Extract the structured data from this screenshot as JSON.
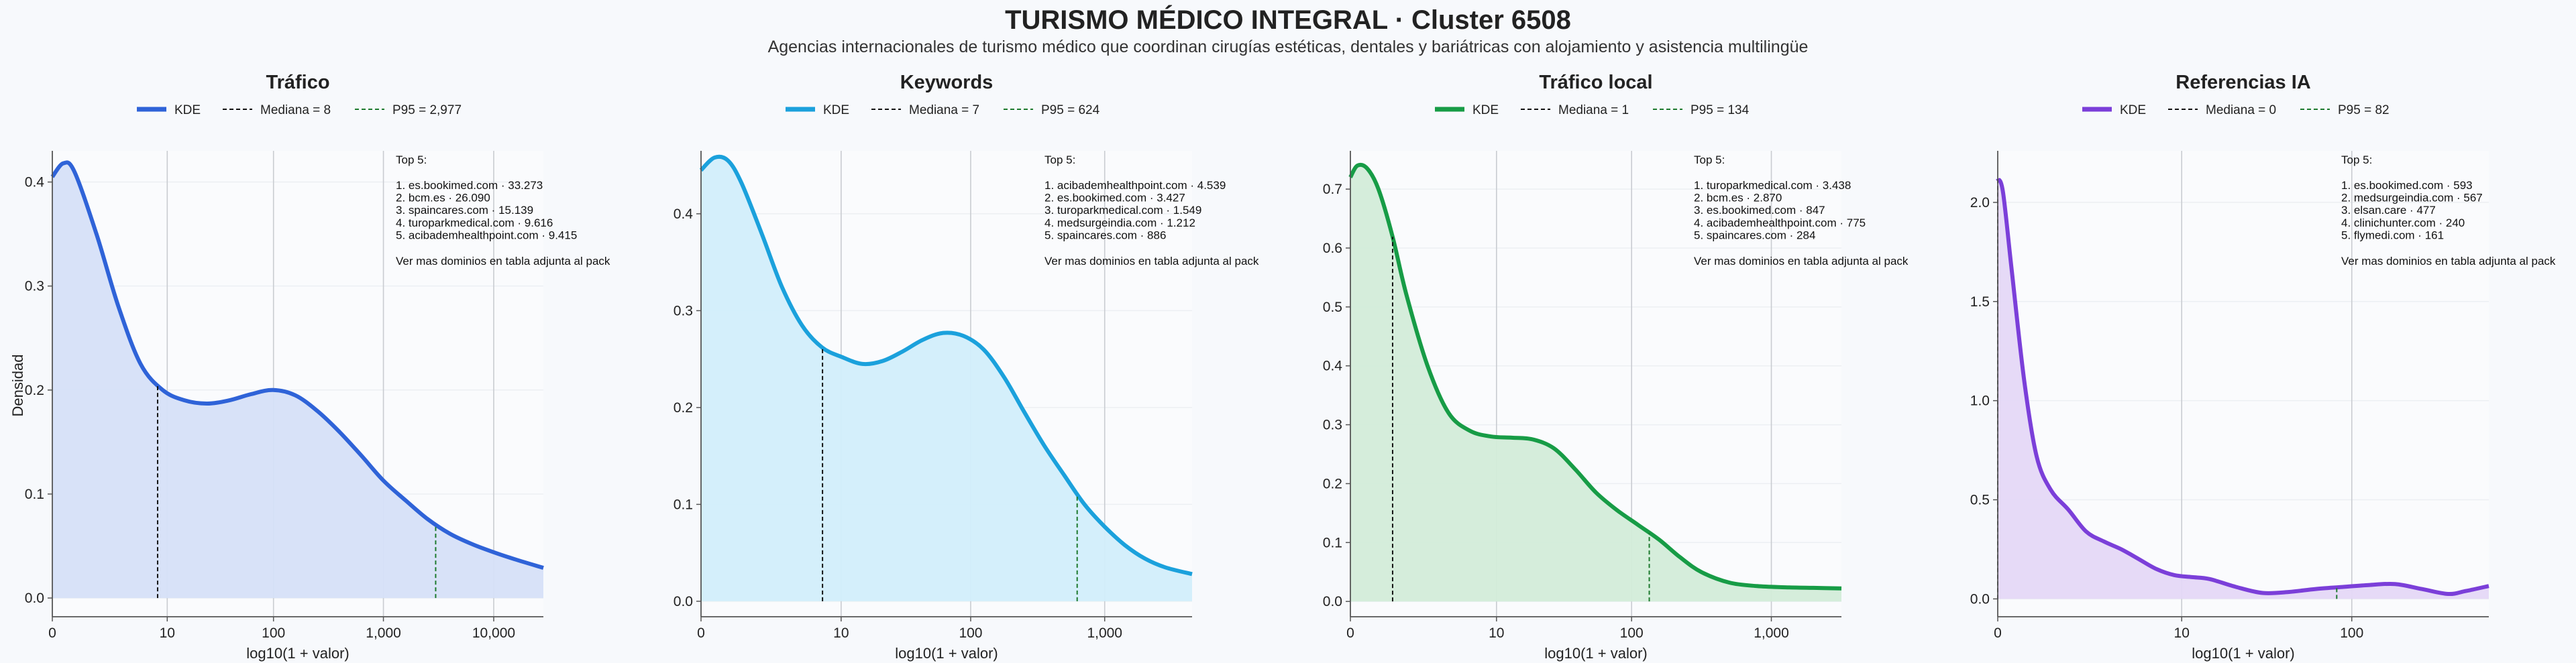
{
  "title": "TURISMO MÉDICO INTEGRAL · Cluster 6508",
  "subtitle": "Agencias internacionales de turismo médico que coordinan cirugías estéticas, dentales y bariátricas con alojamiento y asistencia multilingüe",
  "ylabel": "Densidad",
  "chart_data": [
    {
      "type": "area",
      "title": "Tráfico",
      "color": "#2f63d8",
      "fill": "#d6e0f8",
      "xlabel": "log10(1 + valor)",
      "xscale": "log10(1+x)",
      "xlim": [
        0,
        4.45
      ],
      "ylim": [
        -0.018,
        0.43
      ],
      "xticks": [
        0,
        10,
        100,
        1000,
        10000
      ],
      "xtick_labels": [
        "0",
        "10",
        "100",
        "1,000",
        "10,000"
      ],
      "yticks": [
        0.0,
        0.1,
        0.2,
        0.3,
        0.4
      ],
      "ytick_labels": [
        "0.0",
        "0.1",
        "0.2",
        "0.3",
        "0.4"
      ],
      "legend": {
        "kde": "KDE",
        "median": "Mediana = 8",
        "p95": "P95 = 2,977"
      },
      "median": 8,
      "p95": 2977,
      "kde": {
        "x": [
          0,
          0.1,
          0.2,
          0.4,
          0.6,
          0.8,
          1.0,
          1.2,
          1.4,
          1.6,
          1.8,
          2.0,
          2.2,
          2.4,
          2.6,
          2.8,
          3.0,
          3.2,
          3.4,
          3.6,
          3.8,
          4.0,
          4.2,
          4.45
        ],
        "y": [
          0.405,
          0.418,
          0.41,
          0.35,
          0.28,
          0.225,
          0.2,
          0.19,
          0.187,
          0.19,
          0.196,
          0.2,
          0.195,
          0.18,
          0.16,
          0.137,
          0.113,
          0.094,
          0.076,
          0.062,
          0.052,
          0.044,
          0.037,
          0.029
        ]
      },
      "top5": {
        "heading": "Top 5:",
        "items": [
          "1. es.bookimed.com · 33.273",
          "2. bcm.es · 26.090",
          "3. spaincares.com · 15.139",
          "4. turoparkmedical.com · 9.616",
          "5. acibademhealthpoint.com · 9.415"
        ],
        "footer": "Ver mas dominios en tabla adjunta al pack"
      }
    },
    {
      "type": "area",
      "title": "Keywords",
      "color": "#1ba1dc",
      "fill": "#d2eefb",
      "xlabel": "log10(1 + valor)",
      "xscale": "log10(1+x)",
      "xlim": [
        0,
        3.65
      ],
      "ylim": [
        -0.016,
        0.465
      ],
      "xticks": [
        0,
        10,
        100,
        1000
      ],
      "xtick_labels": [
        "0",
        "10",
        "100",
        "1,000"
      ],
      "yticks": [
        0.0,
        0.1,
        0.2,
        0.3,
        0.4
      ],
      "ytick_labels": [
        "0.0",
        "0.1",
        "0.2",
        "0.3",
        "0.4"
      ],
      "legend": {
        "kde": "KDE",
        "median": "Mediana = 7",
        "p95": "P95 = 624"
      },
      "median": 7,
      "p95": 624,
      "kde": {
        "x": [
          0,
          0.1,
          0.2,
          0.3,
          0.45,
          0.6,
          0.75,
          0.9,
          1.05,
          1.2,
          1.35,
          1.5,
          1.65,
          1.8,
          1.95,
          2.1,
          2.25,
          2.4,
          2.55,
          2.7,
          2.85,
          3.0,
          3.15,
          3.3,
          3.45,
          3.65
        ],
        "y": [
          0.445,
          0.458,
          0.455,
          0.432,
          0.38,
          0.325,
          0.285,
          0.262,
          0.252,
          0.245,
          0.248,
          0.258,
          0.27,
          0.277,
          0.274,
          0.26,
          0.232,
          0.196,
          0.161,
          0.13,
          0.1,
          0.077,
          0.058,
          0.044,
          0.035,
          0.028
        ]
      },
      "top5": {
        "heading": "Top 5:",
        "items": [
          "1. acibademhealthpoint.com · 4.539",
          "2. es.bookimed.com · 3.427",
          "3. turoparkmedical.com · 1.549",
          "4. medsurgeindia.com · 1.212",
          "5. spaincares.com · 886"
        ],
        "footer": "Ver mas dominios en tabla adjunta al pack"
      }
    },
    {
      "type": "area",
      "title": "Tráfico local",
      "color": "#179c46",
      "fill": "#d3ecd9",
      "xlabel": "log10(1 + valor)",
      "xscale": "log10(1+x)",
      "xlim": [
        0,
        3.5
      ],
      "ylim": [
        -0.026,
        0.765
      ],
      "xticks": [
        0,
        10,
        100,
        1000
      ],
      "xtick_labels": [
        "0",
        "10",
        "100",
        "1,000"
      ],
      "yticks": [
        0.0,
        0.1,
        0.2,
        0.3,
        0.4,
        0.5,
        0.6,
        0.7
      ],
      "ytick_labels": [
        "0.0",
        "0.1",
        "0.2",
        "0.3",
        "0.4",
        "0.5",
        "0.6",
        "0.7"
      ],
      "legend": {
        "kde": "KDE",
        "median": "Mediana = 1",
        "p95": "P95 = 134"
      },
      "median": 1,
      "p95": 134,
      "kde": {
        "x": [
          0,
          0.05,
          0.12,
          0.2,
          0.3,
          0.4,
          0.55,
          0.7,
          0.85,
          1.0,
          1.15,
          1.3,
          1.45,
          1.6,
          1.75,
          1.9,
          2.05,
          2.2,
          2.35,
          2.5,
          2.7,
          2.9,
          3.1,
          3.3,
          3.5
        ],
        "y": [
          0.72,
          0.74,
          0.735,
          0.7,
          0.62,
          0.52,
          0.4,
          0.32,
          0.29,
          0.28,
          0.278,
          0.275,
          0.26,
          0.225,
          0.185,
          0.155,
          0.13,
          0.105,
          0.075,
          0.05,
          0.032,
          0.026,
          0.024,
          0.023,
          0.022
        ]
      },
      "top5": {
        "heading": "Top 5:",
        "items": [
          "1. turoparkmedical.com · 3.438",
          "2. bcm.es · 2.870",
          "3. es.bookimed.com · 847",
          "4. acibademhealthpoint.com · 775",
          "5. spaincares.com · 284"
        ],
        "footer": "Ver mas dominios en tabla adjunta al pack"
      }
    },
    {
      "type": "area",
      "title": "Referencias IA",
      "color": "#7b3fd9",
      "fill": "#e5d8f7",
      "xlabel": "log10(1 + valor)",
      "xscale": "log10(1+x)",
      "xlim": [
        0,
        2.78
      ],
      "ylim": [
        -0.09,
        2.26
      ],
      "xticks": [
        0,
        10,
        100
      ],
      "xtick_labels": [
        "0",
        "10",
        "100"
      ],
      "yticks": [
        0.0,
        0.5,
        1.0,
        1.5,
        2.0
      ],
      "ytick_labels": [
        "0.0",
        "0.5",
        "1.0",
        "1.5",
        "2.0"
      ],
      "legend": {
        "kde": "KDE",
        "median": "Mediana = 0",
        "p95": "P95 = 82"
      },
      "median": 0,
      "p95": 82,
      "kde": {
        "x": [
          0,
          0.03,
          0.08,
          0.15,
          0.22,
          0.3,
          0.4,
          0.5,
          0.6,
          0.7,
          0.8,
          0.9,
          1.0,
          1.1,
          1.2,
          1.35,
          1.5,
          1.65,
          1.8,
          1.95,
          2.1,
          2.25,
          2.4,
          2.55,
          2.65,
          2.78
        ],
        "y": [
          2.12,
          2.05,
          1.65,
          1.1,
          0.72,
          0.55,
          0.45,
          0.34,
          0.29,
          0.25,
          0.2,
          0.15,
          0.12,
          0.11,
          0.1,
          0.06,
          0.03,
          0.035,
          0.05,
          0.06,
          0.07,
          0.075,
          0.05,
          0.025,
          0.04,
          0.065
        ]
      },
      "top5": {
        "heading": "Top 5:",
        "items": [
          "1. es.bookimed.com · 593",
          "2. medsurgeindia.com · 567",
          "3. elsan.care · 477",
          "4. clinichunter.com · 240",
          "5. flymedi.com · 161"
        ],
        "footer": "Ver mas dominios en tabla adjunta al pack"
      }
    }
  ]
}
